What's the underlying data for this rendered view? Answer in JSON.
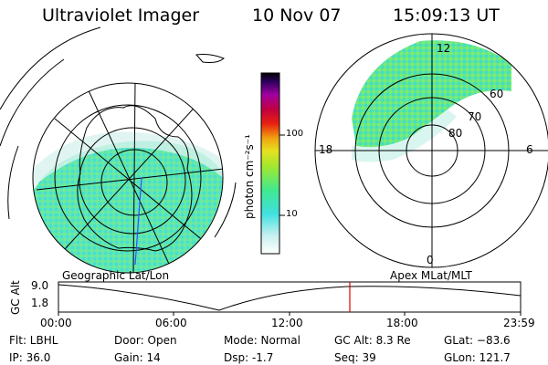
{
  "header": {
    "instrument": "Ultraviolet Imager",
    "date": "10 Nov 07",
    "time": "15:09:13 UT"
  },
  "colorbar": {
    "unit_label": "photon cm⁻²s⁻¹",
    "ticks": [
      "100",
      "10"
    ]
  },
  "left_panel": {
    "caption": "Geographic Lat/Lon"
  },
  "right_panel": {
    "caption": "Apex MLat/MLT",
    "mlt_labels": {
      "top": "12",
      "left": "18",
      "right": "6",
      "bottom": "0"
    },
    "mlat_labels": [
      "60",
      "70",
      "80"
    ]
  },
  "altitude_plot": {
    "ylabel": "GC Alt",
    "yticks": [
      "9.0",
      "1.8"
    ],
    "xticks": [
      "00:00",
      "06:00",
      "12:00",
      "18:00",
      "23:59"
    ],
    "current_time_marker": "15:09:13"
  },
  "info": {
    "filter": "Flt: LBHL",
    "ip": "IP: 36.0",
    "door": "Door: Open",
    "gain": "Gain: 14",
    "mode": "Mode: Normal",
    "dsp": "Dsp:    -1.7",
    "gc_alt": "GC Alt: 8.3 Re",
    "seq": "Seq: 39",
    "glat": "GLat: −83.6",
    "glon": "GLon: 121.7"
  }
}
